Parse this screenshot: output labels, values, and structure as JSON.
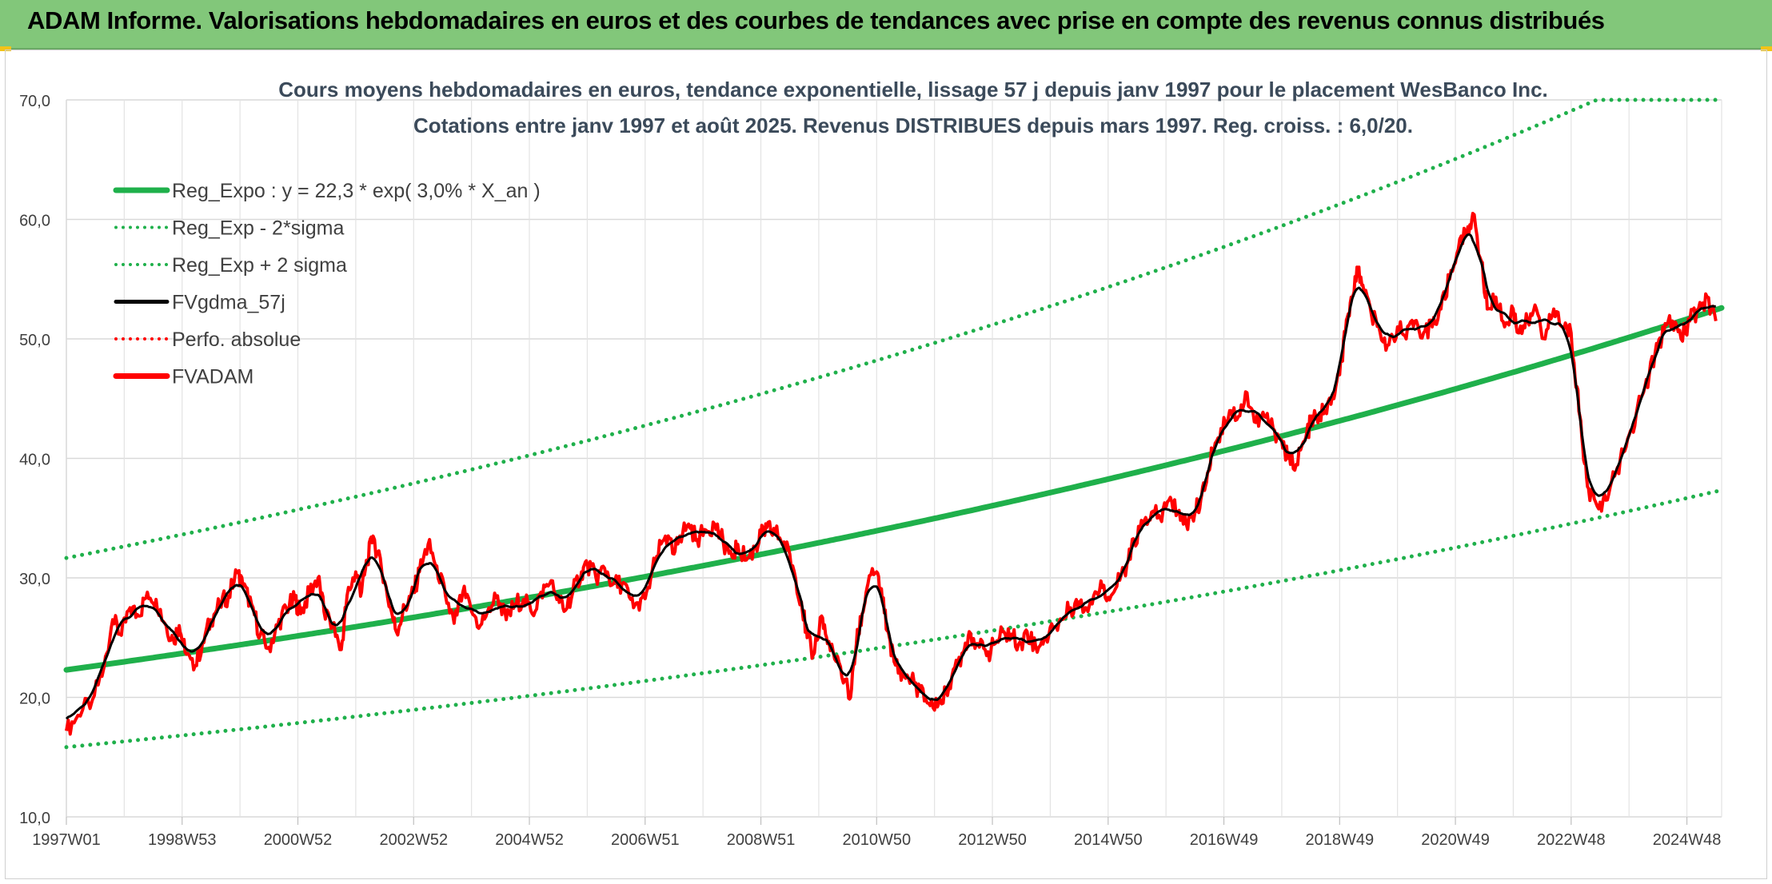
{
  "banner": {
    "title": "ADAM Informe. Valorisations hebdomadaires en euros et des courbes de tendances avec prise en compte des revenus connus distribués"
  },
  "colors": {
    "banner_bg": "#82c77a",
    "green": "#1fb04b",
    "red": "#ff0000",
    "black": "#000000",
    "grid": "#d9d9d9",
    "title_text": "#3b4a5a",
    "axis_text": "#404040"
  },
  "chart_data": {
    "type": "line",
    "title": "Cours moyens hebdomadaires en euros, tendance exponentielle, lissage 57 j depuis janv 1997 pour le placement WesBanco Inc.",
    "subtitle": "Cotations entre janv 1997 et août 2025. Revenus DISTRIBUES depuis mars 1997. Reg. croiss. : 6,0/20.",
    "xlabel": "",
    "ylabel": "",
    "x_range": [
      1997.0,
      2025.6
    ],
    "ylim": [
      10,
      70
    ],
    "y_ticks": [
      "10,0",
      "20,0",
      "30,0",
      "40,0",
      "50,0",
      "60,0",
      "70,0"
    ],
    "x_tick_labels": [
      "1997W01",
      "1998W53",
      "2000W52",
      "2002W52",
      "2004W52",
      "2006W51",
      "2008W51",
      "2010W50",
      "2012W50",
      "2014W50",
      "2016W49",
      "2018W49",
      "2020W49",
      "2022W48",
      "2024W48"
    ],
    "grid": true,
    "legend_position": "top-left",
    "legend": [
      {
        "label": "Reg_Expo : y = 22,3 * exp( 3,0% *  X_an )",
        "color": "#1fb04b",
        "style": "solid-thick"
      },
      {
        "label": "Reg_Exp - 2*sigma",
        "color": "#1fb04b",
        "style": "dotted"
      },
      {
        "label": "Reg_Exp + 2 sigma",
        "color": "#1fb04b",
        "style": "dotted"
      },
      {
        "label": "FVgdma_57j",
        "color": "#000000",
        "style": "solid"
      },
      {
        "label": "Perfo. absolue",
        "color": "#ff0000",
        "style": "dotted"
      },
      {
        "label": "FVADAM",
        "color": "#ff0000",
        "style": "solid-thick"
      }
    ],
    "regression": {
      "a": 22.3,
      "b": 0.03,
      "lower_factor": 0.71,
      "upper_factor": 1.42
    },
    "series": [
      {
        "name": "FVADAM",
        "points": [
          [
            1997.0,
            17.2
          ],
          [
            1997.2,
            18.5
          ],
          [
            1997.45,
            19.8
          ],
          [
            1997.65,
            22.5
          ],
          [
            1997.8,
            26.5
          ],
          [
            1997.95,
            25.2
          ],
          [
            1998.1,
            27.5
          ],
          [
            1998.25,
            26.8
          ],
          [
            1998.4,
            28.8
          ],
          [
            1998.55,
            28.2
          ],
          [
            1998.7,
            26.2
          ],
          [
            1998.85,
            24.8
          ],
          [
            1998.95,
            26.0
          ],
          [
            1999.05,
            23.8
          ],
          [
            1999.2,
            22.3
          ],
          [
            1999.35,
            24.5
          ],
          [
            1999.5,
            26.5
          ],
          [
            1999.65,
            27.8
          ],
          [
            1999.8,
            28.5
          ],
          [
            1999.95,
            30.5
          ],
          [
            2000.05,
            29.3
          ],
          [
            2000.2,
            27.8
          ],
          [
            2000.35,
            25.2
          ],
          [
            2000.5,
            24.2
          ],
          [
            2000.65,
            26.0
          ],
          [
            2000.8,
            27.5
          ],
          [
            2000.95,
            28.2
          ],
          [
            2001.05,
            27.0
          ],
          [
            2001.2,
            28.8
          ],
          [
            2001.35,
            30.0
          ],
          [
            2001.45,
            27.2
          ],
          [
            2001.6,
            26.0
          ],
          [
            2001.75,
            24.0
          ],
          [
            2001.85,
            28.5
          ],
          [
            2002.0,
            30.5
          ],
          [
            2002.1,
            28.8
          ],
          [
            2002.2,
            31.5
          ],
          [
            2002.3,
            33.5
          ],
          [
            2002.45,
            30.5
          ],
          [
            2002.6,
            27.5
          ],
          [
            2002.7,
            25.5
          ],
          [
            2002.85,
            27.5
          ],
          [
            2003.0,
            28.8
          ],
          [
            2003.1,
            30.5
          ],
          [
            2003.25,
            32.8
          ],
          [
            2003.4,
            31.0
          ],
          [
            2003.55,
            28.5
          ],
          [
            2003.7,
            26.2
          ],
          [
            2003.85,
            28.8
          ],
          [
            2004.0,
            27.2
          ],
          [
            2004.15,
            26.0
          ],
          [
            2004.3,
            27.5
          ],
          [
            2004.45,
            28.5
          ],
          [
            2004.6,
            26.5
          ],
          [
            2004.75,
            27.8
          ],
          [
            2004.9,
            28.2
          ],
          [
            2005.05,
            27.0
          ],
          [
            2005.2,
            28.8
          ],
          [
            2005.35,
            29.5
          ],
          [
            2005.5,
            28.5
          ],
          [
            2005.6,
            27.2
          ],
          [
            2005.75,
            28.8
          ],
          [
            2005.9,
            30.5
          ],
          [
            2006.0,
            31.2
          ],
          [
            2006.15,
            30.0
          ],
          [
            2006.3,
            30.8
          ],
          [
            2006.45,
            29.5
          ],
          [
            2006.6,
            29.5
          ],
          [
            2006.75,
            28.2
          ],
          [
            2006.9,
            27.3
          ],
          [
            2007.05,
            29.2
          ],
          [
            2007.2,
            31.8
          ],
          [
            2007.35,
            33.5
          ],
          [
            2007.5,
            32.0
          ],
          [
            2007.6,
            33.5
          ],
          [
            2007.75,
            34.5
          ],
          [
            2007.9,
            33.2
          ],
          [
            2008.05,
            34.0
          ],
          [
            2008.2,
            34.5
          ],
          [
            2008.35,
            33.0
          ],
          [
            2008.5,
            31.8
          ],
          [
            2008.6,
            32.8
          ],
          [
            2008.75,
            31.5
          ],
          [
            2008.9,
            32.5
          ],
          [
            2009.0,
            33.5
          ],
          [
            2009.1,
            34.2
          ],
          [
            2009.25,
            33.8
          ],
          [
            2009.4,
            33.0
          ],
          [
            2009.55,
            31.0
          ],
          [
            2009.7,
            28.0
          ],
          [
            2009.8,
            25.0
          ],
          [
            2009.9,
            23.5
          ],
          [
            2010.05,
            26.8
          ],
          [
            2010.15,
            24.5
          ],
          [
            2010.3,
            23.0
          ],
          [
            2010.45,
            21.5
          ],
          [
            2010.55,
            20.0
          ],
          [
            2010.65,
            24.5
          ],
          [
            2010.75,
            27.0
          ],
          [
            2010.85,
            29.5
          ],
          [
            2011.0,
            30.5
          ],
          [
            2011.1,
            28.0
          ],
          [
            2011.2,
            25.5
          ],
          [
            2011.3,
            23.0
          ],
          [
            2011.45,
            22.0
          ],
          [
            2011.6,
            21.5
          ],
          [
            2011.75,
            20.5
          ],
          [
            2011.9,
            19.5
          ],
          [
            2012.05,
            19.2
          ],
          [
            2012.2,
            20.5
          ],
          [
            2012.35,
            22.5
          ],
          [
            2012.5,
            23.8
          ],
          [
            2012.6,
            25.5
          ],
          [
            2012.75,
            24.5
          ],
          [
            2012.9,
            23.5
          ],
          [
            2013.05,
            24.5
          ],
          [
            2013.2,
            25.5
          ],
          [
            2013.35,
            25.0
          ],
          [
            2013.5,
            24.5
          ],
          [
            2013.6,
            25.5
          ],
          [
            2013.75,
            24.2
          ],
          [
            2013.9,
            25.0
          ],
          [
            2014.05,
            25.8
          ],
          [
            2014.2,
            26.5
          ],
          [
            2014.35,
            27.5
          ],
          [
            2014.5,
            28.0
          ],
          [
            2014.6,
            27.5
          ],
          [
            2014.75,
            28.5
          ],
          [
            2014.9,
            29.2
          ],
          [
            2015.05,
            28.5
          ],
          [
            2015.2,
            29.8
          ],
          [
            2015.35,
            31.5
          ],
          [
            2015.45,
            33.0
          ],
          [
            2015.6,
            34.5
          ],
          [
            2015.75,
            35.5
          ],
          [
            2015.9,
            35.0
          ],
          [
            2016.05,
            36.5
          ],
          [
            2016.2,
            35.5
          ],
          [
            2016.35,
            34.5
          ],
          [
            2016.5,
            35.5
          ],
          [
            2016.6,
            36.5
          ],
          [
            2016.7,
            38.0
          ],
          [
            2016.8,
            40.5
          ],
          [
            2016.95,
            42.5
          ],
          [
            2017.1,
            44.0
          ],
          [
            2017.25,
            43.5
          ],
          [
            2017.4,
            45.5
          ],
          [
            2017.55,
            43.0
          ],
          [
            2017.7,
            43.5
          ],
          [
            2017.85,
            42.5
          ],
          [
            2018.0,
            41.5
          ],
          [
            2018.1,
            40.0
          ],
          [
            2018.25,
            39.5
          ],
          [
            2018.4,
            41.5
          ],
          [
            2018.5,
            43.0
          ],
          [
            2018.6,
            43.5
          ],
          [
            2018.75,
            44.0
          ],
          [
            2018.9,
            45.0
          ],
          [
            2019.0,
            47.0
          ],
          [
            2019.1,
            50.5
          ],
          [
            2019.2,
            53.5
          ],
          [
            2019.3,
            56.0
          ],
          [
            2019.4,
            54.5
          ],
          [
            2019.55,
            52.0
          ],
          [
            2019.7,
            50.5
          ],
          [
            2019.85,
            49.5
          ],
          [
            2020.0,
            51.0
          ],
          [
            2020.15,
            50.0
          ],
          [
            2020.3,
            51.5
          ],
          [
            2020.45,
            50.5
          ],
          [
            2020.6,
            51.0
          ],
          [
            2020.75,
            52.5
          ],
          [
            2020.9,
            55.0
          ],
          [
            2021.05,
            57.5
          ],
          [
            2021.2,
            59.0
          ],
          [
            2021.3,
            60.5
          ],
          [
            2021.45,
            56.5
          ],
          [
            2021.55,
            52.5
          ],
          [
            2021.7,
            53.5
          ],
          [
            2021.85,
            51.0
          ],
          [
            2022.0,
            52.5
          ],
          [
            2022.1,
            50.5
          ],
          [
            2022.25,
            51.5
          ],
          [
            2022.4,
            52.5
          ],
          [
            2022.55,
            50.0
          ],
          [
            2022.7,
            52.5
          ],
          [
            2022.85,
            51.0
          ],
          [
            2023.0,
            50.5
          ],
          [
            2023.1,
            46.0
          ],
          [
            2023.2,
            41.0
          ],
          [
            2023.3,
            37.5
          ],
          [
            2023.45,
            36.0
          ],
          [
            2023.6,
            36.5
          ],
          [
            2023.75,
            38.5
          ],
          [
            2023.9,
            40.5
          ],
          [
            2024.05,
            42.5
          ],
          [
            2024.2,
            45.0
          ],
          [
            2024.35,
            47.0
          ],
          [
            2024.5,
            49.5
          ],
          [
            2024.6,
            50.5
          ],
          [
            2024.75,
            51.5
          ],
          [
            2024.9,
            50.0
          ],
          [
            2025.05,
            51.5
          ],
          [
            2025.2,
            52.5
          ],
          [
            2025.35,
            53.5
          ],
          [
            2025.5,
            51.5
          ]
        ]
      }
    ]
  }
}
